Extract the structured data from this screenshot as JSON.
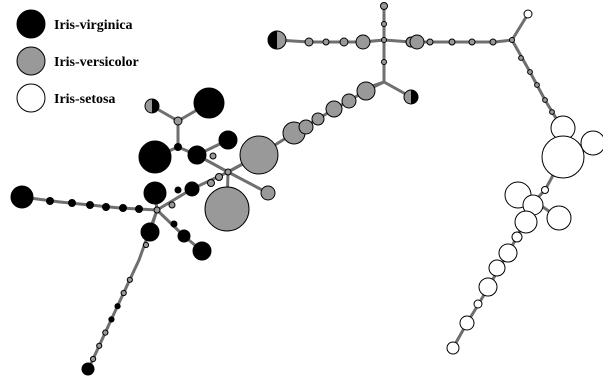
{
  "legend": {
    "items": [
      {
        "label": "Iris-virginica",
        "color": "#000000"
      },
      {
        "label": "Iris-versicolor",
        "color": "#999999"
      },
      {
        "label": "Iris-setosa",
        "color": "#ffffff"
      }
    ]
  },
  "colors": {
    "edge": "#6f6f6f",
    "node_outline": "#000000"
  }
}
